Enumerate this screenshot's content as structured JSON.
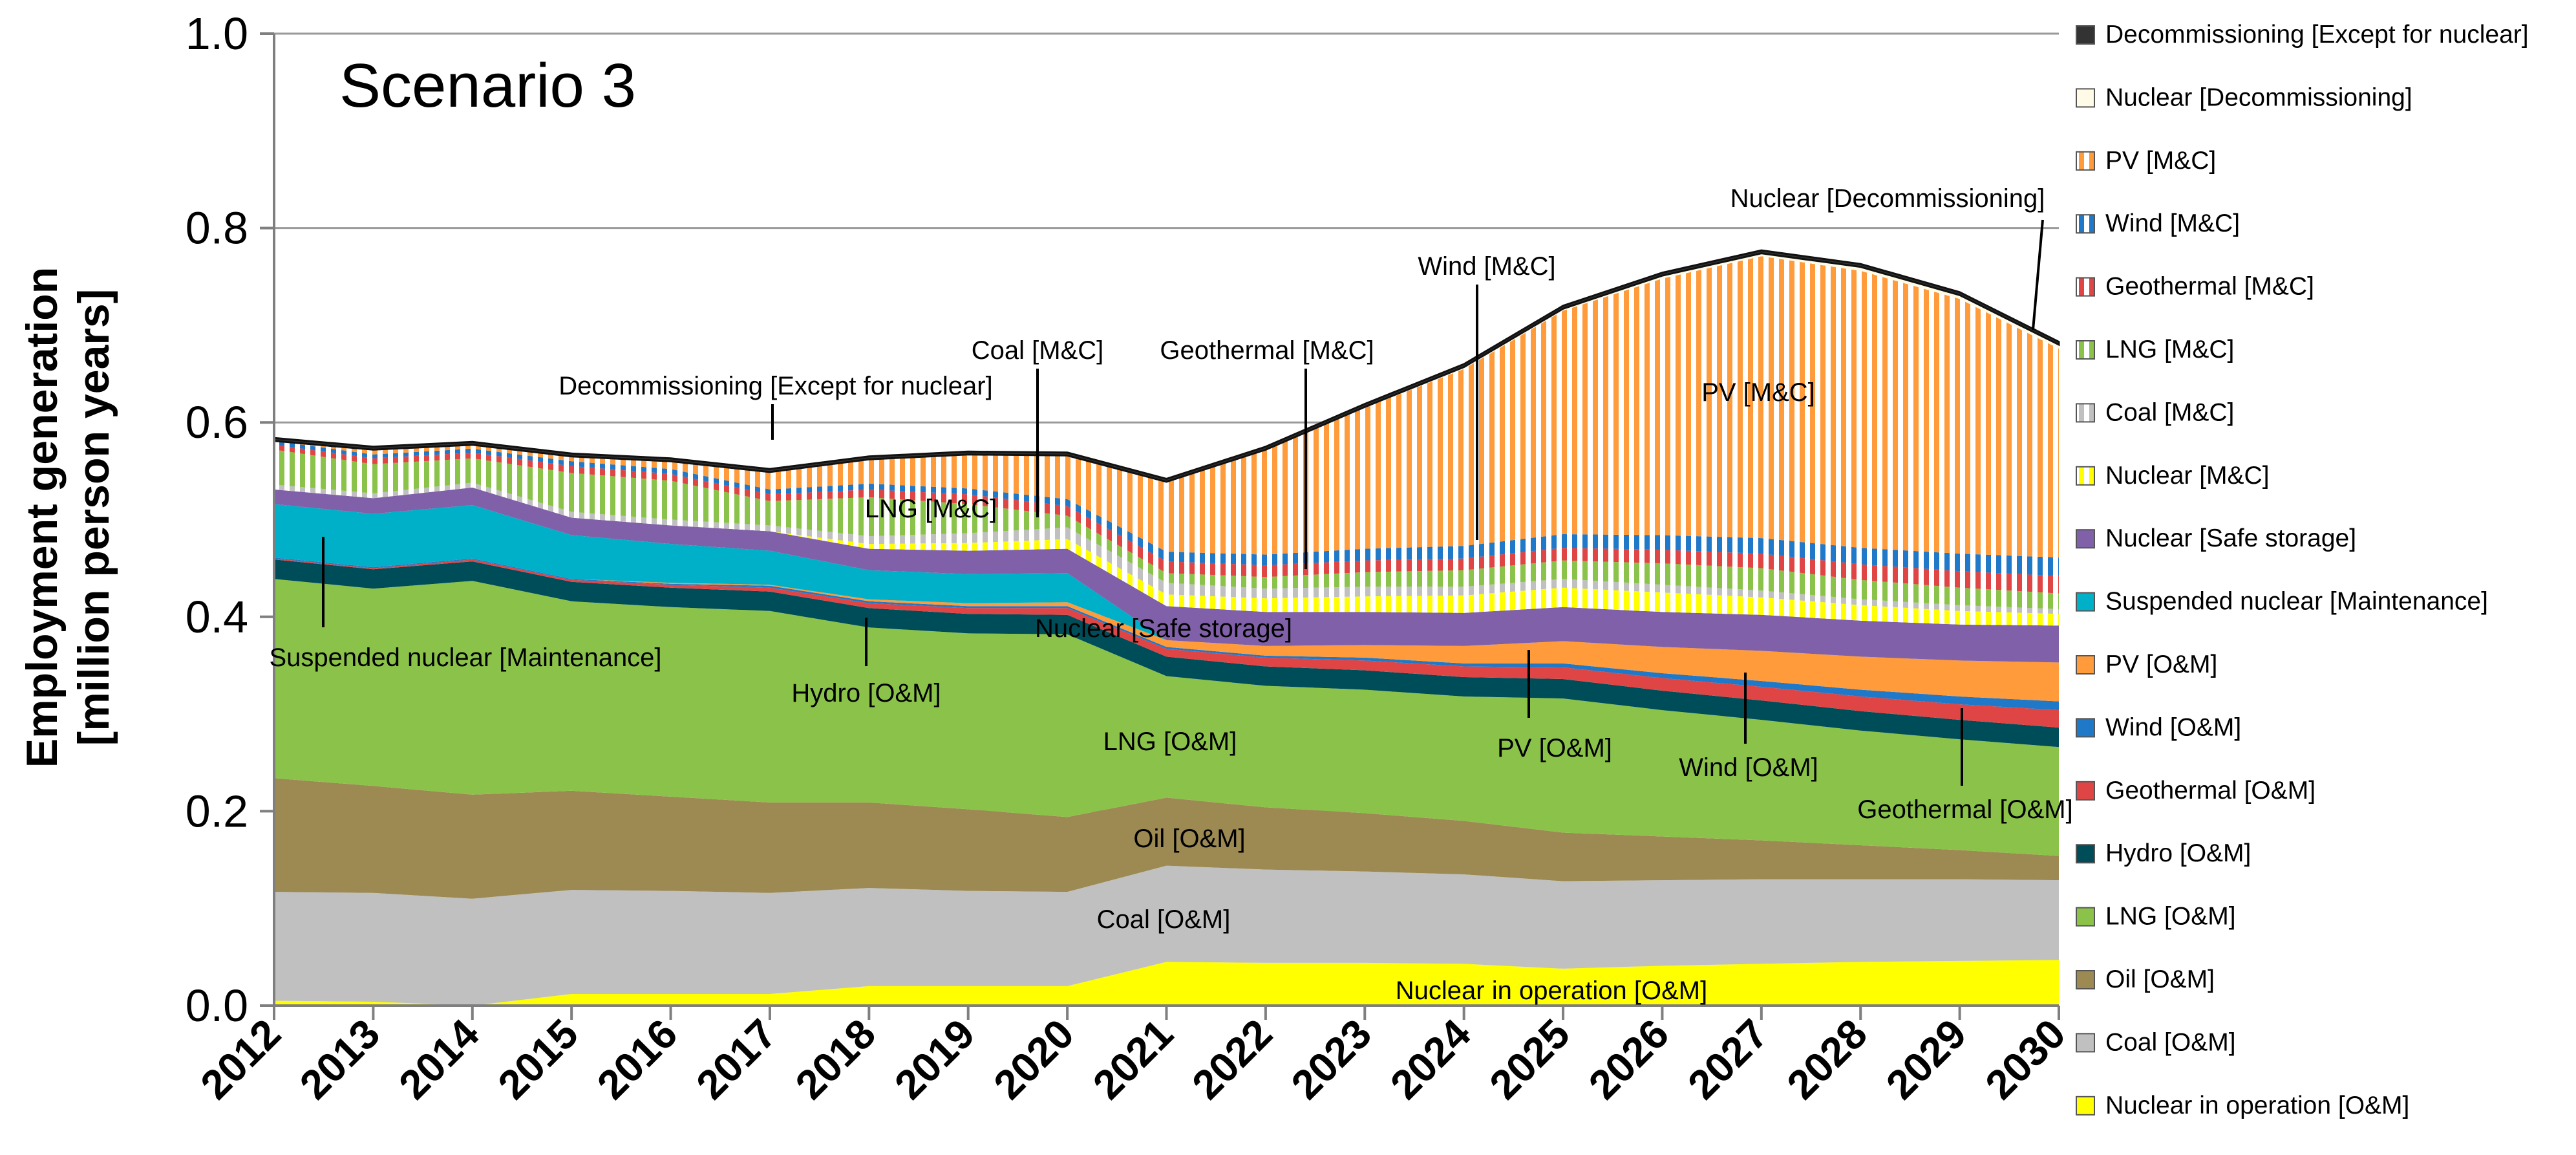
{
  "chart_data": {
    "type": "area",
    "stacked": true,
    "scenario_label": "Scenario 3",
    "ylabel_line1": "Employment generation",
    "ylabel_line2": "[million person years]",
    "ylim": [
      0,
      1.0
    ],
    "yticks": [
      "0.0",
      "0.2",
      "0.4",
      "0.6",
      "0.8",
      "1.0"
    ],
    "ytick_values": [
      0,
      0.2,
      0.4,
      0.6,
      0.8,
      1.0
    ],
    "grid": true,
    "legend_position": "right",
    "categories": [
      "2012",
      "2013",
      "2014",
      "2015",
      "2016",
      "2017",
      "2018",
      "2019",
      "2020",
      "2021",
      "2022",
      "2023",
      "2024",
      "2025",
      "2026",
      "2027",
      "2028",
      "2029",
      "2030"
    ],
    "series": [
      {
        "name": "Nuclear in operation [O&M]",
        "color": "#ffff00",
        "pattern": "solid",
        "values": [
          0.005,
          0.004,
          0.0,
          0.012,
          0.012,
          0.012,
          0.02,
          0.02,
          0.02,
          0.045,
          0.044,
          0.044,
          0.043,
          0.038,
          0.041,
          0.043,
          0.045,
          0.046,
          0.047
        ]
      },
      {
        "name": "Coal [O&M]",
        "color": "#c0c0c0",
        "pattern": "solid",
        "values": [
          0.112,
          0.112,
          0.11,
          0.107,
          0.106,
          0.104,
          0.101,
          0.098,
          0.097,
          0.099,
          0.096,
          0.094,
          0.092,
          0.09,
          0.088,
          0.087,
          0.085,
          0.084,
          0.082
        ]
      },
      {
        "name": "Oil [O&M]",
        "color": "#9c8a52",
        "pattern": "solid",
        "values": [
          0.117,
          0.11,
          0.107,
          0.102,
          0.097,
          0.093,
          0.088,
          0.084,
          0.077,
          0.07,
          0.064,
          0.06,
          0.055,
          0.05,
          0.045,
          0.04,
          0.035,
          0.03,
          0.025
        ]
      },
      {
        "name": "LNG [O&M]",
        "color": "#8bc34a",
        "pattern": "solid",
        "values": [
          0.205,
          0.203,
          0.22,
          0.195,
          0.195,
          0.197,
          0.18,
          0.181,
          0.188,
          0.125,
          0.125,
          0.127,
          0.128,
          0.138,
          0.13,
          0.124,
          0.118,
          0.114,
          0.112
        ]
      },
      {
        "name": "Hydro [O&M]",
        "color": "#004d5a",
        "pattern": "solid",
        "values": [
          0.02,
          0.02,
          0.02,
          0.02,
          0.02,
          0.02,
          0.02,
          0.02,
          0.02,
          0.02,
          0.02,
          0.02,
          0.02,
          0.02,
          0.02,
          0.02,
          0.02,
          0.02,
          0.02
        ]
      },
      {
        "name": "Geothermal [O&M]",
        "color": "#e04545",
        "pattern": "solid",
        "values": [
          0.001,
          0.001,
          0.002,
          0.002,
          0.003,
          0.004,
          0.005,
          0.006,
          0.007,
          0.008,
          0.009,
          0.01,
          0.011,
          0.012,
          0.013,
          0.014,
          0.015,
          0.016,
          0.018
        ]
      },
      {
        "name": "Wind [O&M]",
        "color": "#1f78c8",
        "pattern": "solid",
        "values": [
          0.001,
          0.001,
          0.001,
          0.001,
          0.001,
          0.002,
          0.002,
          0.002,
          0.002,
          0.002,
          0.002,
          0.003,
          0.003,
          0.004,
          0.005,
          0.006,
          0.007,
          0.008,
          0.009
        ]
      },
      {
        "name": "PV [O&M]",
        "color": "#ff9b3a",
        "pattern": "solid",
        "values": [
          0.0,
          0.0,
          0.0,
          0.0,
          0.001,
          0.001,
          0.002,
          0.003,
          0.004,
          0.007,
          0.01,
          0.013,
          0.018,
          0.023,
          0.027,
          0.031,
          0.034,
          0.037,
          0.04
        ]
      },
      {
        "name": "Suspended nuclear [Maintenance]",
        "color": "#00b0c8",
        "pattern": "solid",
        "values": [
          0.055,
          0.055,
          0.055,
          0.045,
          0.04,
          0.035,
          0.03,
          0.03,
          0.03,
          0.0,
          0.0,
          0.0,
          0.0,
          0.0,
          0.0,
          0.0,
          0.0,
          0.0,
          0.0
        ]
      },
      {
        "name": "Nuclear [Safe storage]",
        "color": "#8060a8",
        "pattern": "solid",
        "values": [
          0.015,
          0.016,
          0.018,
          0.018,
          0.019,
          0.02,
          0.022,
          0.024,
          0.025,
          0.035,
          0.035,
          0.034,
          0.034,
          0.035,
          0.036,
          0.037,
          0.037,
          0.037,
          0.038
        ]
      },
      {
        "name": "Nuclear [M&C]",
        "color": "#ffff00",
        "pattern": "vstripe",
        "values": [
          0.0,
          0.0,
          0.0,
          0.0,
          0.0,
          0.0,
          0.005,
          0.008,
          0.01,
          0.012,
          0.014,
          0.016,
          0.018,
          0.02,
          0.02,
          0.018,
          0.016,
          0.014,
          0.012
        ]
      },
      {
        "name": "Coal [M&C]",
        "color": "#c0c0c0",
        "pattern": "vstripe",
        "values": [
          0.005,
          0.005,
          0.005,
          0.006,
          0.006,
          0.006,
          0.008,
          0.01,
          0.012,
          0.012,
          0.01,
          0.01,
          0.009,
          0.009,
          0.008,
          0.007,
          0.006,
          0.006,
          0.005
        ]
      },
      {
        "name": "LNG [M&C]",
        "color": "#8bc34a",
        "pattern": "vstripe",
        "values": [
          0.036,
          0.03,
          0.025,
          0.04,
          0.04,
          0.025,
          0.04,
          0.03,
          0.012,
          0.01,
          0.012,
          0.015,
          0.017,
          0.019,
          0.022,
          0.023,
          0.02,
          0.018,
          0.016
        ]
      },
      {
        "name": "Geothermal [M&C]",
        "color": "#e04545",
        "pattern": "vstripe",
        "values": [
          0.005,
          0.006,
          0.006,
          0.007,
          0.007,
          0.007,
          0.008,
          0.01,
          0.01,
          0.012,
          0.012,
          0.012,
          0.012,
          0.013,
          0.014,
          0.015,
          0.016,
          0.017,
          0.018
        ]
      },
      {
        "name": "Wind [M&C]",
        "color": "#1f78c8",
        "pattern": "vstripe",
        "values": [
          0.004,
          0.004,
          0.004,
          0.005,
          0.005,
          0.005,
          0.006,
          0.006,
          0.007,
          0.01,
          0.011,
          0.012,
          0.013,
          0.014,
          0.015,
          0.016,
          0.017,
          0.018,
          0.019
        ]
      },
      {
        "name": "PV [M&C]",
        "color": "#ff9b3a",
        "pattern": "vstripe",
        "values": [
          0.0,
          0.005,
          0.004,
          0.005,
          0.008,
          0.018,
          0.025,
          0.035,
          0.045,
          0.072,
          0.108,
          0.145,
          0.182,
          0.23,
          0.264,
          0.29,
          0.285,
          0.262,
          0.215
        ]
      },
      {
        "name": "Nuclear [Decommissioning]",
        "color": "#fffbe6",
        "pattern": "solid",
        "values": [
          0.0,
          0.0,
          0.0,
          0.0,
          0.0,
          0.0,
          0.0,
          0.0,
          0.0,
          0.0,
          0.0,
          0.001,
          0.002,
          0.002,
          0.003,
          0.003,
          0.004,
          0.004,
          0.004
        ]
      },
      {
        "name": "Decommissioning [Except for nuclear]",
        "color": "#333333",
        "pattern": "solid",
        "values": [
          0.003,
          0.003,
          0.003,
          0.003,
          0.003,
          0.003,
          0.003,
          0.003,
          0.003,
          0.003,
          0.003,
          0.003,
          0.003,
          0.003,
          0.003,
          0.003,
          0.003,
          0.003,
          0.003
        ]
      }
    ],
    "annotations": [
      {
        "text": "Decommissioning [Except for nuclear]",
        "series": "Decommissioning [Except for nuclear]",
        "year": "2017"
      },
      {
        "text": "Coal [M&C]",
        "series": "Coal [M&C]",
        "year": "2019.7"
      },
      {
        "text": "Geothermal [M&C]",
        "series": "Geothermal [M&C]",
        "year": "2022.4"
      },
      {
        "text": "Wind [M&C]",
        "series": "Wind [M&C]",
        "year": "2024.1"
      },
      {
        "text": "Nuclear [Decommissioning]",
        "series": "Nuclear [Decommissioning]",
        "year": "2029.8"
      },
      {
        "text": "PV [M&C]",
        "series": "PV [M&C]",
        "year": "2027"
      },
      {
        "text": "LNG [M&C]",
        "series": "LNG [M&C]",
        "year": "2018.6"
      },
      {
        "text": "Suspended nuclear [Maintenance]",
        "series": "Suspended nuclear [Maintenance]",
        "year": "2012.5"
      },
      {
        "text": "Nuclear [Safe storage]",
        "series": "Nuclear [Safe storage]",
        "year": "2021.3"
      },
      {
        "text": "Hydro [O&M]",
        "series": "Hydro [O&M]",
        "year": "2018"
      },
      {
        "text": "LNG [O&M]",
        "series": "LNG [O&M]",
        "year": "2021"
      },
      {
        "text": "PV [O&M]",
        "series": "PV [O&M]",
        "year": "2024.7"
      },
      {
        "text": "Wind [O&M]",
        "series": "Wind [O&M]",
        "year": "2026.9"
      },
      {
        "text": "Geothermal [O&M]",
        "series": "Geothermal [O&M]",
        "year": "2029.1"
      },
      {
        "text": "Oil [O&M]",
        "series": "Oil [O&M]",
        "year": "2020"
      },
      {
        "text": "Coal [O&M]",
        "series": "Coal [O&M]",
        "year": "2021"
      },
      {
        "text": "Nuclear in operation [O&M]",
        "series": "Nuclear in operation [O&M]",
        "year": "2025.5"
      }
    ]
  }
}
